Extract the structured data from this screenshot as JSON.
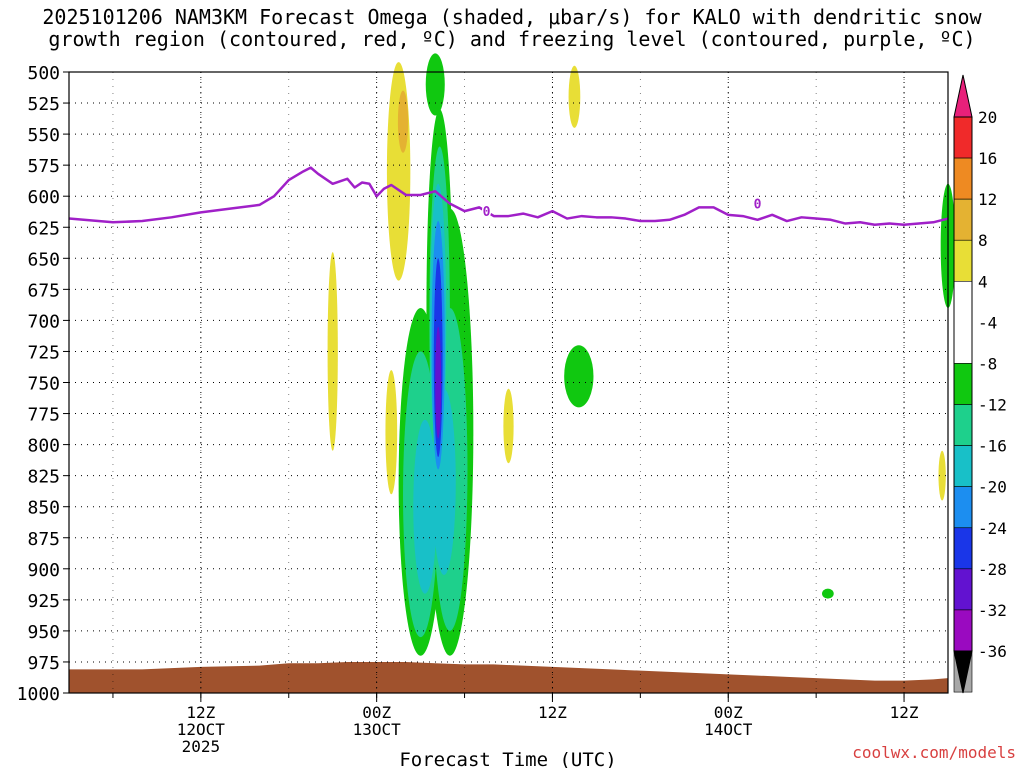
{
  "title_line1": "2025101206 NAM3KM Forecast Omega (shaded, μbar/s) for KALO with dendritic snow",
  "title_line2": "growth region (contoured, red, ºC) and freezing level (contoured, purple, ºC)",
  "credit": "coolwx.com/models",
  "chart_data": {
    "type": "heatmap",
    "xlabel": "Forecast Time (UTC)",
    "ylabel": "",
    "y_scale": "pressure (hPa), linear, inverted",
    "ylim": [
      1000,
      500
    ],
    "xlim_hours_from_12Z12OCT": [
      -9,
      51
    ],
    "y_ticks": [
      "500",
      "525",
      "550",
      "575",
      "600",
      "625",
      "650",
      "675",
      "700",
      "725",
      "750",
      "775",
      "800",
      "825",
      "850",
      "875",
      "900",
      "925",
      "950",
      "975",
      "1000"
    ],
    "x_ticks": [
      {
        "hour": 0,
        "lines": [
          "12Z",
          "12OCT",
          "2025"
        ]
      },
      {
        "hour": 12,
        "lines": [
          "00Z",
          "13OCT"
        ]
      },
      {
        "hour": 24,
        "lines": [
          "12Z"
        ]
      },
      {
        "hour": 36,
        "lines": [
          "00Z",
          "14OCT"
        ]
      },
      {
        "hour": 48,
        "lines": [
          "12Z"
        ]
      }
    ],
    "grid": true,
    "colorbar": {
      "labels": [
        "20",
        "16",
        "12",
        "8",
        "4",
        "-4",
        "-8",
        "-12",
        "-16",
        "-20",
        "-24",
        "-28",
        "-32",
        "-36"
      ],
      "bands": [
        {
          "from": 20,
          "to": 24,
          "color": "#e8207a",
          "shape": "triangle"
        },
        {
          "from": 16,
          "to": 20,
          "color": "#f02a2a"
        },
        {
          "from": 12,
          "to": 16,
          "color": "#ee8a22"
        },
        {
          "from": 8,
          "to": 12,
          "color": "#e4b232"
        },
        {
          "from": 4,
          "to": 8,
          "color": "#e8de36"
        },
        {
          "from": -4,
          "to": 4,
          "color": "#ffffff"
        },
        {
          "from": -8,
          "to": -4,
          "color": "#10c810"
        },
        {
          "from": -12,
          "to": -8,
          "color": "#1ed08c"
        },
        {
          "from": -16,
          "to": -12,
          "color": "#18c0c8"
        },
        {
          "from": -20,
          "to": -16,
          "color": "#1c8ef0"
        },
        {
          "from": -24,
          "to": -20,
          "color": "#1a36e8"
        },
        {
          "from": -28,
          "to": -24,
          "color": "#6212d0"
        },
        {
          "from": -32,
          "to": -28,
          "color": "#9a0ac0"
        },
        {
          "from": -36,
          "to": -32,
          "color": "#a8a8a8"
        },
        {
          "from": -40,
          "to": -36,
          "color": "#000000",
          "shape": "triangle"
        }
      ]
    },
    "freezing_level": {
      "label": "0",
      "color": "#a020c8",
      "hours": [
        -9,
        -8,
        -6,
        -4,
        -2,
        0,
        2,
        4,
        5,
        6,
        7,
        7.5,
        8,
        9,
        9.5,
        10,
        10.5,
        11,
        11.5,
        12,
        12.5,
        13,
        14,
        15,
        16,
        17,
        18,
        19,
        20,
        21,
        22,
        23,
        24,
        25,
        26,
        27,
        28,
        29,
        30,
        31,
        32,
        33,
        34,
        35,
        36,
        37,
        38,
        39,
        40,
        41,
        42,
        43,
        44,
        45,
        46,
        47,
        48,
        49,
        50,
        51
      ],
      "pressure": [
        618,
        619,
        621,
        620,
        617,
        613,
        610,
        607,
        600,
        587,
        580,
        577,
        582,
        590,
        588,
        586,
        593,
        589,
        590,
        600,
        594,
        591,
        599,
        599,
        596,
        606,
        612,
        609,
        616,
        616,
        614,
        617,
        612,
        618,
        616,
        617,
        617,
        618,
        620,
        620,
        619,
        615,
        609,
        609,
        615,
        616,
        619,
        615,
        620,
        617,
        618,
        619,
        622,
        621,
        623,
        622,
        623,
        622,
        621,
        618
      ]
    },
    "shaded_regions": [
      {
        "band_color": "#e8de36",
        "hour_center": 13.5,
        "p_center": 580,
        "hour_halfwidth": 0.8,
        "p_halfwidth": 88
      },
      {
        "band_color": "#e4b232",
        "hour_center": 13.8,
        "p_center": 540,
        "hour_halfwidth": 0.35,
        "p_halfwidth": 25
      },
      {
        "band_color": "#e8de36",
        "hour_center": 25.5,
        "p_center": 520,
        "hour_halfwidth": 0.4,
        "p_halfwidth": 25
      },
      {
        "band_color": "#e8de36",
        "hour_center": 9.0,
        "p_center": 725,
        "hour_halfwidth": 0.35,
        "p_halfwidth": 80
      },
      {
        "band_color": "#e8de36",
        "hour_center": 13.0,
        "p_center": 790,
        "hour_halfwidth": 0.4,
        "p_halfwidth": 50
      },
      {
        "band_color": "#e8de36",
        "hour_center": 21.0,
        "p_center": 785,
        "hour_halfwidth": 0.35,
        "p_halfwidth": 30
      },
      {
        "band_color": "#e8de36",
        "hour_center": 50.6,
        "p_center": 825,
        "hour_halfwidth": 0.25,
        "p_halfwidth": 20
      },
      {
        "band_color": "#10c810",
        "hour_center": 16.0,
        "p_center": 510,
        "hour_halfwidth": 0.65,
        "p_halfwidth": 25
      },
      {
        "band_color": "#10c810",
        "hour_center": 25.8,
        "p_center": 745,
        "hour_halfwidth": 1.0,
        "p_halfwidth": 25
      },
      {
        "band_color": "#10c810",
        "hour_center": 42.8,
        "p_center": 920,
        "hour_halfwidth": 0.4,
        "p_halfwidth": 4
      },
      {
        "band_color": "#10c810",
        "hour_center": 51.0,
        "p_center": 640,
        "hour_halfwidth": 0.5,
        "p_halfwidth": 50
      },
      {
        "band_color": "#10c810",
        "hour_center": 15.0,
        "p_center": 830,
        "hour_halfwidth": 1.5,
        "p_halfwidth": 140
      },
      {
        "band_color": "#10c810",
        "hour_center": 17.0,
        "p_center": 790,
        "hour_halfwidth": 1.6,
        "p_halfwidth": 180
      },
      {
        "band_color": "#10c810",
        "hour_center": 16.3,
        "p_center": 690,
        "hour_halfwidth": 0.9,
        "p_halfwidth": 160
      },
      {
        "band_color": "#1ed08c",
        "hour_center": 15.0,
        "p_center": 840,
        "hour_halfwidth": 1.2,
        "p_halfwidth": 115
      },
      {
        "band_color": "#1ed08c",
        "hour_center": 17.0,
        "p_center": 820,
        "hour_halfwidth": 1.2,
        "p_halfwidth": 130
      },
      {
        "band_color": "#1ed08c",
        "hour_center": 16.3,
        "p_center": 700,
        "hour_halfwidth": 0.7,
        "p_halfwidth": 140
      },
      {
        "band_color": "#18c0c8",
        "hour_center": 15.3,
        "p_center": 850,
        "hour_halfwidth": 0.8,
        "p_halfwidth": 70
      },
      {
        "band_color": "#18c0c8",
        "hour_center": 16.6,
        "p_center": 830,
        "hour_halfwidth": 0.8,
        "p_halfwidth": 75
      },
      {
        "band_color": "#18c0c8",
        "hour_center": 16.2,
        "p_center": 700,
        "hour_halfwidth": 0.55,
        "p_halfwidth": 110
      },
      {
        "band_color": "#1c8ef0",
        "hour_center": 16.2,
        "p_center": 720,
        "hour_halfwidth": 0.45,
        "p_halfwidth": 100
      },
      {
        "band_color": "#1a36e8",
        "hour_center": 16.2,
        "p_center": 730,
        "hour_halfwidth": 0.3,
        "p_halfwidth": 80
      },
      {
        "band_color": "#6212d0",
        "hour_center": 16.2,
        "p_center": 750,
        "hour_halfwidth": 0.2,
        "p_halfwidth": 45
      }
    ],
    "terrain": {
      "color": "#a0522d",
      "hours": [
        -9,
        -4,
        0,
        4,
        6,
        8,
        10,
        12,
        14,
        16,
        18,
        20,
        22,
        24,
        26,
        28,
        30,
        32,
        34,
        36,
        38,
        40,
        42,
        44,
        46,
        48,
        50,
        51
      ],
      "surface_pressure": [
        981,
        981,
        979,
        978,
        976,
        976,
        975,
        975,
        975,
        976,
        977,
        977,
        978,
        979,
        980,
        981,
        982,
        983,
        984,
        985,
        986,
        987,
        988,
        989,
        990,
        990,
        989,
        988
      ]
    }
  }
}
